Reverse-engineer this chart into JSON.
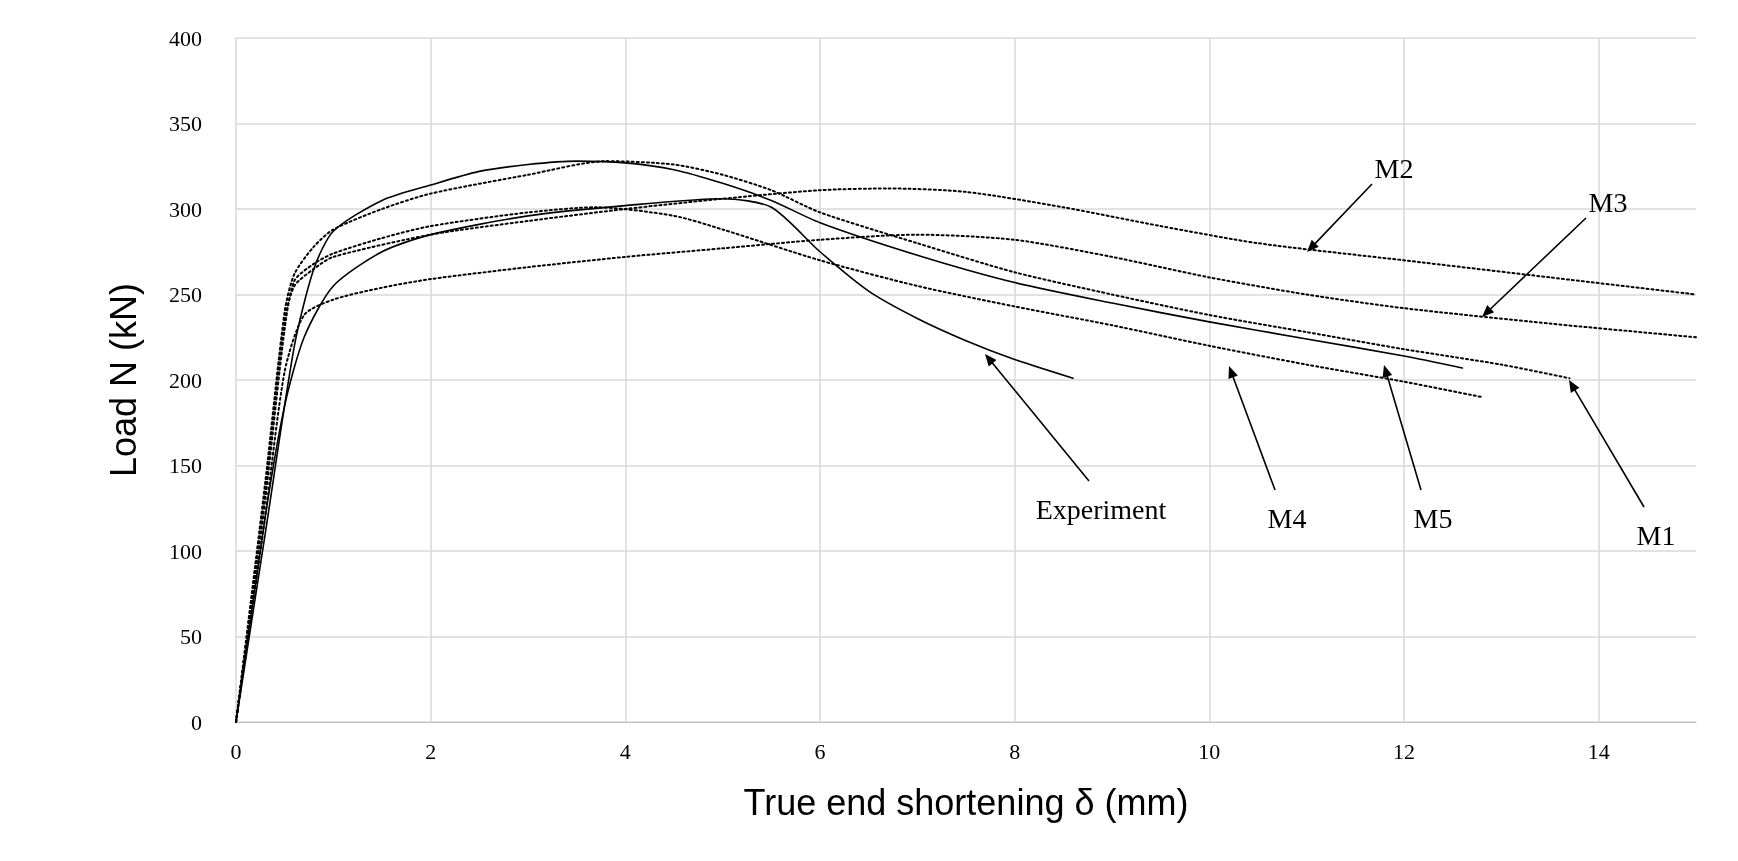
{
  "chart_data": {
    "type": "line",
    "xlabel": "True end shortening δ (mm)",
    "ylabel": "Load N (kN)",
    "xlim": [
      0,
      15
    ],
    "xticks": [
      0,
      2,
      4,
      6,
      8,
      10,
      12,
      14
    ],
    "ylim": [
      0,
      400
    ],
    "yticks": [
      0,
      50,
      100,
      150,
      200,
      250,
      300,
      350,
      400
    ],
    "grid": true,
    "marker": "none",
    "series": [
      {
        "color": "#000000",
        "line_style": "solid",
        "x": [
          0,
          0.3,
          0.5,
          0.7,
          1,
          1.5,
          2,
          3,
          4,
          5,
          5.5,
          6,
          6.5,
          7,
          7.5,
          8,
          8.6
        ],
        "values": [
          0,
          120,
          185,
          225,
          255,
          275,
          285,
          296,
          302,
          306,
          301,
          275,
          252,
          236,
          223,
          212,
          201
        ]
      },
      {
        "color": "#000000",
        "line_style": "solid",
        "x": [
          0,
          0.3,
          0.6,
          0.8,
          1,
          1.5,
          2,
          2.5,
          3,
          3.5,
          4,
          4.5,
          5,
          5.5,
          6,
          7,
          8,
          9,
          10,
          11,
          12,
          12.6
        ],
        "values": [
          0,
          110,
          220,
          265,
          287,
          305,
          314,
          322,
          326,
          328,
          327,
          323,
          315,
          305,
          292,
          273,
          257,
          245,
          234,
          224,
          214,
          207
        ]
      },
      {
        "color": "#000000",
        "line_style": "dotted",
        "x": [
          0,
          0.3,
          0.5,
          0.6,
          0.8,
          1,
          1.5,
          2,
          3,
          3.8,
          4.5,
          5,
          5.5,
          6,
          7,
          8,
          9,
          10,
          11,
          12,
          13,
          13.7
        ],
        "values": [
          0,
          140,
          240,
          262,
          278,
          288,
          300,
          309,
          320,
          328,
          326,
          320,
          311,
          298,
          280,
          263,
          250,
          238,
          228,
          218,
          209,
          201
        ]
      },
      {
        "color": "#000000",
        "line_style": "dotted",
        "x": [
          0,
          0.3,
          0.5,
          0.6,
          0.8,
          1,
          1.5,
          2,
          3,
          3.7,
          4.5,
          5,
          6,
          7,
          8,
          9,
          10,
          11,
          12,
          12.8
        ],
        "values": [
          0,
          130,
          230,
          258,
          268,
          274,
          283,
          290,
          298,
          301,
          296,
          288,
          270,
          255,
          243,
          232,
          220,
          209,
          199,
          190
        ]
      },
      {
        "color": "#000000",
        "line_style": "dotted",
        "x": [
          0,
          0.3,
          0.5,
          0.6,
          0.8,
          1,
          2,
          3,
          4,
          5,
          6,
          6.7,
          7.5,
          8.5,
          9.5,
          10.5,
          12,
          13.5,
          15
        ],
        "values": [
          0,
          135,
          235,
          255,
          265,
          272,
          285,
          293,
          300,
          306,
          311,
          312,
          310,
          301,
          290,
          280,
          270,
          260,
          250
        ]
      },
      {
        "color": "#000000",
        "line_style": "dotted",
        "x": [
          0,
          0.3,
          0.5,
          0.7,
          1,
          1.5,
          2,
          3,
          4,
          5,
          6,
          7,
          8,
          9,
          10,
          11,
          12,
          13.5,
          15
        ],
        "values": [
          0,
          120,
          205,
          238,
          247,
          254,
          259,
          266,
          272,
          277,
          282,
          285,
          282,
          272,
          260,
          250,
          242,
          233,
          225
        ]
      }
    ],
    "annotations": [
      "Experiment",
      "M4",
      "M5",
      "M1",
      "M2",
      "M3"
    ]
  }
}
